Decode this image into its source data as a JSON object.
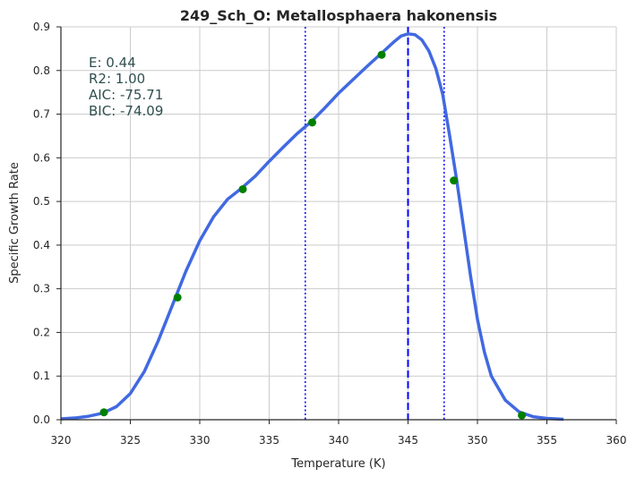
{
  "chart_data": {
    "type": "line",
    "title": "249_Sch_O: Metallosphaera hakonensis",
    "xlabel": "Temperature (K)",
    "ylabel": "Specific Growth Rate",
    "xlim": [
      320,
      360
    ],
    "ylim": [
      0,
      0.9
    ],
    "xticks": [
      320,
      325,
      330,
      335,
      340,
      345,
      350,
      355,
      360
    ],
    "yticks": [
      0.0,
      0.1,
      0.2,
      0.3,
      0.4,
      0.5,
      0.6,
      0.7,
      0.8,
      0.9
    ],
    "grid": true,
    "annotations": [
      "E:  0.44",
      "R2:  1.00",
      "AIC: -75.71",
      "BIC: -74.09"
    ],
    "series": [
      {
        "kind": "line",
        "color": "#4169e1",
        "x": [
          320.0,
          321.0,
          322.0,
          323.0,
          324.0,
          325.0,
          326.0,
          327.0,
          328.0,
          329.0,
          330.0,
          331.0,
          332.0,
          333.0,
          334.0,
          335.0,
          336.0,
          337.0,
          338.0,
          339.0,
          340.0,
          341.0,
          342.0,
          343.0,
          344.0,
          344.5,
          345.0,
          345.5,
          346.0,
          346.5,
          347.0,
          347.5,
          348.0,
          348.5,
          349.0,
          349.5,
          350.0,
          350.5,
          351.0,
          352.0,
          353.0,
          354.0,
          355.0,
          356.2
        ],
        "y": [
          0.002,
          0.004,
          0.008,
          0.015,
          0.03,
          0.06,
          0.11,
          0.18,
          0.26,
          0.34,
          0.41,
          0.465,
          0.505,
          0.53,
          0.558,
          0.592,
          0.624,
          0.655,
          0.682,
          0.714,
          0.748,
          0.778,
          0.808,
          0.837,
          0.866,
          0.879,
          0.884,
          0.882,
          0.87,
          0.845,
          0.805,
          0.745,
          0.65,
          0.55,
          0.44,
          0.33,
          0.23,
          0.155,
          0.1,
          0.045,
          0.018,
          0.007,
          0.003,
          0.001
        ]
      },
      {
        "kind": "points",
        "color": "#008000",
        "x": [
          323.1,
          328.4,
          333.1,
          338.1,
          343.1,
          348.3,
          353.2
        ],
        "y": [
          0.017,
          0.28,
          0.528,
          0.681,
          0.836,
          0.548,
          0.01
        ]
      }
    ],
    "vlines": [
      {
        "x": 345.0,
        "style": "dashed",
        "color": "#0000ff"
      },
      {
        "x": 337.6,
        "style": "dotted",
        "color": "#0000ff"
      },
      {
        "x": 347.6,
        "style": "dotted",
        "color": "#0000ff"
      }
    ]
  }
}
